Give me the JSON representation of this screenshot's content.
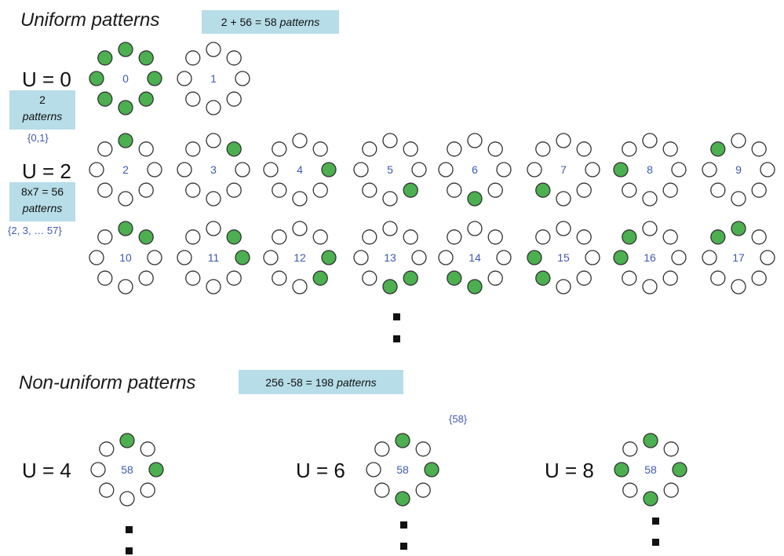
{
  "colors": {
    "on": "#4caf50",
    "off": "#ffffff",
    "stroke": "#333333",
    "label": "#3f59b5",
    "callout_bg": "#b7dde8"
  },
  "uniform": {
    "heading": "Uniform patterns",
    "callout_expr": "2 + 56 = 58",
    "callout_word": "patterns",
    "u0": {
      "label": "U = 0",
      "box_count": "2",
      "box_word": "patterns",
      "set": "{0,1}"
    },
    "u2": {
      "label": "U = 2",
      "box_expr": "8x7 = 56",
      "box_word": "patterns",
      "set": "{2, 3, … 57}"
    }
  },
  "nonuniform": {
    "heading": "Non-uniform patterns",
    "callout_expr": "256 -58 = 198",
    "callout_word": "patterns",
    "set_note": "{58}",
    "u4": "U = 4",
    "u6": "U = 6",
    "u8": "U = 8"
  },
  "patterns": [
    {
      "label": "0",
      "on": [
        0,
        1,
        2,
        3,
        4,
        5,
        6,
        7
      ]
    },
    {
      "label": "1",
      "on": []
    },
    {
      "label": "2",
      "on": [
        0
      ]
    },
    {
      "label": "3",
      "on": [
        1
      ]
    },
    {
      "label": "4",
      "on": [
        2
      ]
    },
    {
      "label": "5",
      "on": [
        3
      ]
    },
    {
      "label": "6",
      "on": [
        4
      ]
    },
    {
      "label": "7",
      "on": [
        5
      ]
    },
    {
      "label": "8",
      "on": [
        6
      ]
    },
    {
      "label": "9",
      "on": [
        7
      ]
    },
    {
      "label": "10",
      "on": [
        0,
        1
      ]
    },
    {
      "label": "11",
      "on": [
        1,
        2
      ]
    },
    {
      "label": "12",
      "on": [
        2,
        3
      ]
    },
    {
      "label": "13",
      "on": [
        3,
        4
      ]
    },
    {
      "label": "14",
      "on": [
        4,
        5
      ]
    },
    {
      "label": "15",
      "on": [
        5,
        6
      ]
    },
    {
      "label": "16",
      "on": [
        6,
        7
      ]
    },
    {
      "label": "17",
      "on": [
        7,
        0
      ]
    },
    {
      "label": "58",
      "on": [
        0,
        2
      ]
    },
    {
      "label": "58",
      "on": [
        0,
        2,
        4
      ]
    },
    {
      "label": "58",
      "on": [
        0,
        2,
        4,
        6
      ]
    }
  ]
}
